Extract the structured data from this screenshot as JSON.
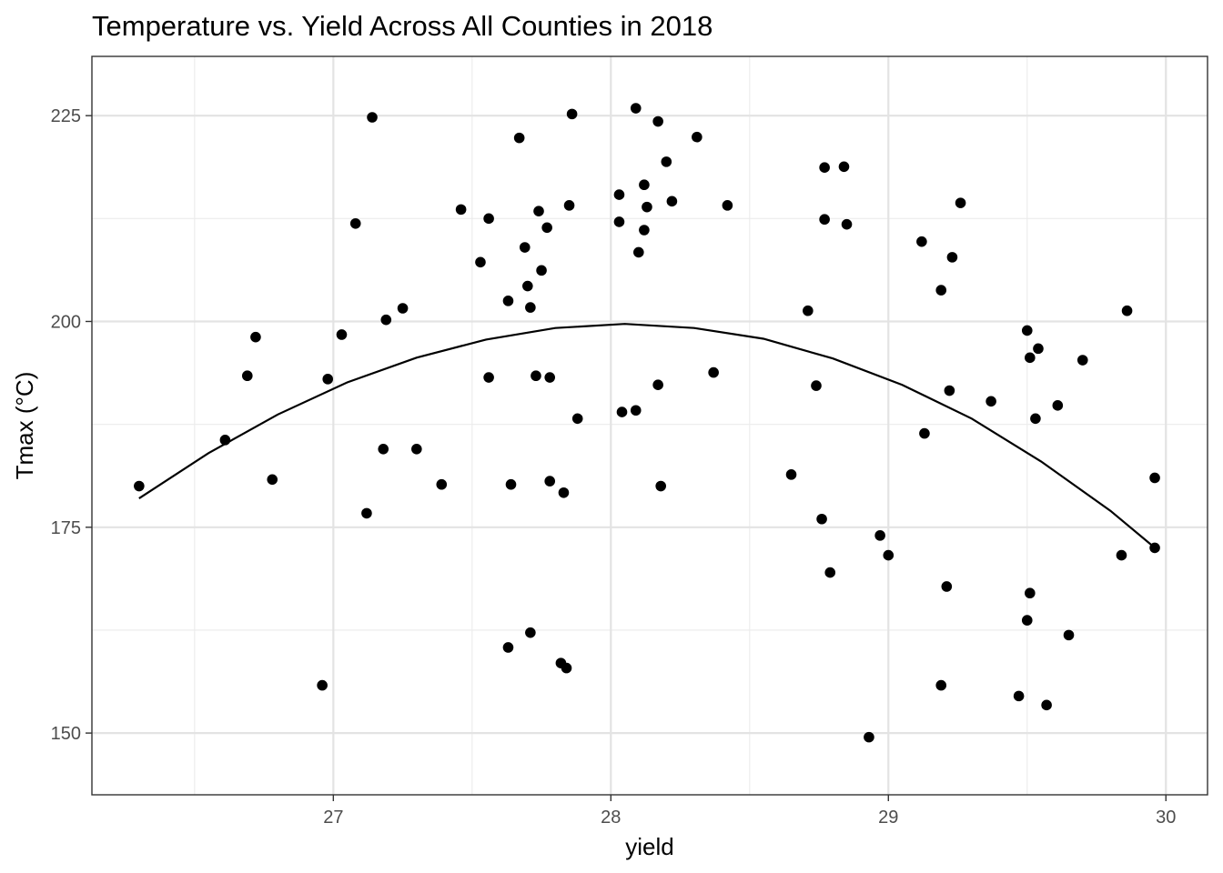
{
  "chart_data": {
    "type": "scatter",
    "title": "Temperature vs. Yield Across All Counties in 2018",
    "xlabel": "yield",
    "ylabel": "Tmax (°C)",
    "xlim": [
      26.13,
      30.15
    ],
    "ylim": [
      142.5,
      232.2
    ],
    "xticks": [
      27,
      28,
      29,
      30
    ],
    "yticks": [
      150,
      175,
      200,
      225
    ],
    "x_minor_ticks": [
      26.5,
      27.5,
      28.5,
      29.5
    ],
    "y_minor_ticks": [
      162.5,
      187.5,
      212.5
    ],
    "grid": true,
    "theme": "bw",
    "point_color": "#000000",
    "line_color": "#000000",
    "points": [
      {
        "x": 26.3,
        "y": 180.0
      },
      {
        "x": 26.61,
        "y": 185.6
      },
      {
        "x": 26.69,
        "y": 193.4
      },
      {
        "x": 26.72,
        "y": 198.1
      },
      {
        "x": 26.78,
        "y": 180.8
      },
      {
        "x": 26.96,
        "y": 155.8
      },
      {
        "x": 26.98,
        "y": 193.0
      },
      {
        "x": 27.03,
        "y": 198.4
      },
      {
        "x": 27.08,
        "y": 211.9
      },
      {
        "x": 27.12,
        "y": 176.7
      },
      {
        "x": 27.14,
        "y": 224.8
      },
      {
        "x": 27.18,
        "y": 184.5
      },
      {
        "x": 27.19,
        "y": 200.2
      },
      {
        "x": 27.25,
        "y": 201.6
      },
      {
        "x": 27.3,
        "y": 184.5
      },
      {
        "x": 27.39,
        "y": 180.2
      },
      {
        "x": 27.46,
        "y": 213.6
      },
      {
        "x": 27.53,
        "y": 207.2
      },
      {
        "x": 27.56,
        "y": 212.5
      },
      {
        "x": 27.56,
        "y": 193.2
      },
      {
        "x": 27.63,
        "y": 202.5
      },
      {
        "x": 27.63,
        "y": 160.4
      },
      {
        "x": 27.64,
        "y": 180.2
      },
      {
        "x": 27.67,
        "y": 222.3
      },
      {
        "x": 27.69,
        "y": 209.0
      },
      {
        "x": 27.7,
        "y": 204.3
      },
      {
        "x": 27.71,
        "y": 162.2
      },
      {
        "x": 27.71,
        "y": 201.7
      },
      {
        "x": 27.73,
        "y": 193.4
      },
      {
        "x": 27.74,
        "y": 213.4
      },
      {
        "x": 27.75,
        "y": 206.2
      },
      {
        "x": 27.77,
        "y": 211.4
      },
      {
        "x": 27.78,
        "y": 180.6
      },
      {
        "x": 27.78,
        "y": 193.2
      },
      {
        "x": 27.82,
        "y": 158.5
      },
      {
        "x": 27.83,
        "y": 179.2
      },
      {
        "x": 27.84,
        "y": 157.9
      },
      {
        "x": 27.85,
        "y": 214.1
      },
      {
        "x": 27.86,
        "y": 225.2
      },
      {
        "x": 27.88,
        "y": 188.2
      },
      {
        "x": 28.03,
        "y": 212.1
      },
      {
        "x": 28.03,
        "y": 215.4
      },
      {
        "x": 28.04,
        "y": 189.0
      },
      {
        "x": 28.09,
        "y": 225.9
      },
      {
        "x": 28.09,
        "y": 189.2
      },
      {
        "x": 28.1,
        "y": 208.4
      },
      {
        "x": 28.12,
        "y": 216.6
      },
      {
        "x": 28.12,
        "y": 211.1
      },
      {
        "x": 28.13,
        "y": 213.9
      },
      {
        "x": 28.17,
        "y": 224.3
      },
      {
        "x": 28.17,
        "y": 192.3
      },
      {
        "x": 28.18,
        "y": 180.0
      },
      {
        "x": 28.2,
        "y": 219.4
      },
      {
        "x": 28.22,
        "y": 214.6
      },
      {
        "x": 28.31,
        "y": 222.4
      },
      {
        "x": 28.37,
        "y": 193.8
      },
      {
        "x": 28.42,
        "y": 214.1
      },
      {
        "x": 28.65,
        "y": 181.4
      },
      {
        "x": 28.71,
        "y": 201.3
      },
      {
        "x": 28.74,
        "y": 192.2
      },
      {
        "x": 28.76,
        "y": 176.0
      },
      {
        "x": 28.77,
        "y": 212.4
      },
      {
        "x": 28.77,
        "y": 218.7
      },
      {
        "x": 28.79,
        "y": 169.5
      },
      {
        "x": 28.84,
        "y": 218.8
      },
      {
        "x": 28.85,
        "y": 211.8
      },
      {
        "x": 28.93,
        "y": 149.5
      },
      {
        "x": 28.97,
        "y": 174.0
      },
      {
        "x": 29.0,
        "y": 171.6
      },
      {
        "x": 29.12,
        "y": 209.7
      },
      {
        "x": 29.13,
        "y": 186.4
      },
      {
        "x": 29.19,
        "y": 155.8
      },
      {
        "x": 29.19,
        "y": 203.8
      },
      {
        "x": 29.21,
        "y": 167.8
      },
      {
        "x": 29.22,
        "y": 191.6
      },
      {
        "x": 29.23,
        "y": 207.8
      },
      {
        "x": 29.26,
        "y": 214.4
      },
      {
        "x": 29.37,
        "y": 190.3
      },
      {
        "x": 29.47,
        "y": 154.5
      },
      {
        "x": 29.5,
        "y": 198.9
      },
      {
        "x": 29.5,
        "y": 163.7
      },
      {
        "x": 29.51,
        "y": 167.0
      },
      {
        "x": 29.51,
        "y": 195.6
      },
      {
        "x": 29.53,
        "y": 188.2
      },
      {
        "x": 29.54,
        "y": 196.7
      },
      {
        "x": 29.57,
        "y": 153.4
      },
      {
        "x": 29.61,
        "y": 189.8
      },
      {
        "x": 29.65,
        "y": 161.9
      },
      {
        "x": 29.7,
        "y": 195.3
      },
      {
        "x": 29.84,
        "y": 171.6
      },
      {
        "x": 29.86,
        "y": 201.3
      },
      {
        "x": 29.96,
        "y": 181.0
      },
      {
        "x": 29.96,
        "y": 172.5
      }
    ],
    "fit_curve": [
      {
        "x": 26.3,
        "y": 178.5
      },
      {
        "x": 26.55,
        "y": 184.0
      },
      {
        "x": 26.8,
        "y": 188.7
      },
      {
        "x": 27.05,
        "y": 192.6
      },
      {
        "x": 27.3,
        "y": 195.6
      },
      {
        "x": 27.55,
        "y": 197.8
      },
      {
        "x": 27.8,
        "y": 199.2
      },
      {
        "x": 28.05,
        "y": 199.7
      },
      {
        "x": 28.3,
        "y": 199.2
      },
      {
        "x": 28.55,
        "y": 197.9
      },
      {
        "x": 28.8,
        "y": 195.5
      },
      {
        "x": 29.05,
        "y": 192.3
      },
      {
        "x": 29.3,
        "y": 188.2
      },
      {
        "x": 29.55,
        "y": 183.0
      },
      {
        "x": 29.8,
        "y": 177.0
      },
      {
        "x": 29.96,
        "y": 172.5
      }
    ]
  }
}
